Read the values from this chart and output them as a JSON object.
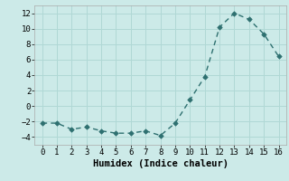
{
  "x": [
    0,
    1,
    2,
    3,
    4,
    5,
    6,
    7,
    8,
    9,
    10,
    11,
    12,
    13,
    14,
    15,
    16
  ],
  "y": [
    -2.2,
    -2.2,
    -3.0,
    -2.7,
    -3.2,
    -3.5,
    -3.5,
    -3.2,
    -3.8,
    -2.2,
    0.8,
    3.8,
    10.2,
    12.0,
    11.2,
    9.3,
    6.4
  ],
  "line_color": "#2e7070",
  "marker": "D",
  "marker_size": 2.8,
  "line_width": 1.0,
  "background_color": "#cceae8",
  "grid_color": "#b0d8d5",
  "xlabel": "Humidex (Indice chaleur)",
  "xlim": [
    -0.5,
    16.5
  ],
  "ylim": [
    -5,
    13
  ],
  "xticks": [
    0,
    1,
    2,
    3,
    4,
    5,
    6,
    7,
    8,
    9,
    10,
    11,
    12,
    13,
    14,
    15,
    16
  ],
  "yticks": [
    -4,
    -2,
    0,
    2,
    4,
    6,
    8,
    10,
    12
  ],
  "xlabel_fontsize": 7.5,
  "tick_fontsize": 6.5,
  "font_family": "monospace"
}
